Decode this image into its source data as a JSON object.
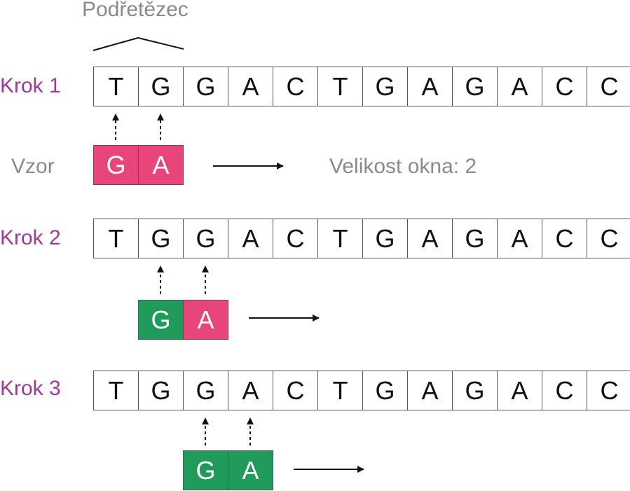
{
  "substring_label": "Podřetězec",
  "pattern_label": "Vzor",
  "window_size_label": "Velikost okna: 2",
  "sequence": [
    "T",
    "G",
    "G",
    "A",
    "C",
    "T",
    "G",
    "A",
    "G",
    "A",
    "C",
    "C"
  ],
  "steps": [
    {
      "label": "Krok 1",
      "pattern": [
        {
          "char": "G",
          "status": "mismatch"
        },
        {
          "char": "A",
          "status": "mismatch"
        }
      ]
    },
    {
      "label": "Krok 2",
      "pattern": [
        {
          "char": "G",
          "status": "match"
        },
        {
          "char": "A",
          "status": "mismatch"
        }
      ]
    },
    {
      "label": "Krok 3",
      "pattern": [
        {
          "char": "G",
          "status": "match"
        },
        {
          "char": "A",
          "status": "match"
        }
      ]
    }
  ],
  "colors": {
    "match": "#1e9a5a",
    "mismatch": "#e8457a",
    "step_label": "#9b3b93",
    "annotation": "#8a8a8a"
  }
}
